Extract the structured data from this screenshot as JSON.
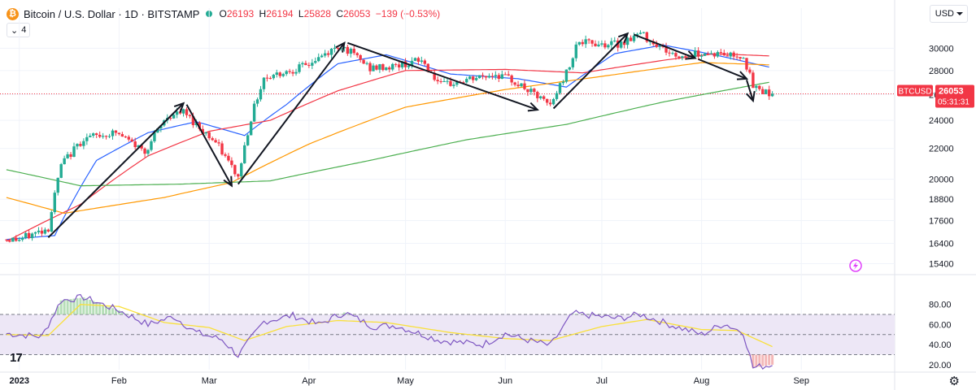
{
  "header": {
    "symbol_title": "Bitcoin / U.S. Dollar · 1D · BITSTAMP",
    "ohlc": [
      {
        "k": "O",
        "v": "26193"
      },
      {
        "k": "H",
        "v": "26194"
      },
      {
        "k": "L",
        "v": "25828"
      },
      {
        "k": "C",
        "v": "26053"
      },
      {
        "k": "",
        "v": "−139 (−0.53%)"
      }
    ],
    "indicator_count": "4",
    "currency": "USD"
  },
  "price_tag": {
    "symbol": "BTCUSD",
    "price": "26053",
    "countdown": "05:31:31",
    "color": "#f23645"
  },
  "colors": {
    "up": "#22ab94",
    "down": "#f23645",
    "ma_blue": "#2962ff",
    "ma_red": "#f23645",
    "ma_orange": "#ff9800",
    "ma_green": "#4caf50",
    "rsi_line": "#7e57c2",
    "rsi_signal": "#f9e03a",
    "rsi_band": "#ede7f6"
  },
  "chart_data": [
    {
      "type": "candlestick",
      "title": "Bitcoin / U.S. Dollar · 1D · BITSTAMP",
      "ylim": [
        15000,
        31500
      ],
      "y_ticks": [
        "30000",
        "28000",
        "26000",
        "24000",
        "22000",
        "20000",
        "18800",
        "17600",
        "16400",
        "15400"
      ],
      "y_scale": "log",
      "x_ticks": [
        "2023",
        "Feb",
        "Mar",
        "Apr",
        "May",
        "Jun",
        "Jul",
        "Aug",
        "Sep"
      ],
      "grid": true,
      "series": [
        {
          "type": "candlestick",
          "x_range": [
            "2022-12-28",
            "2023-08-23"
          ],
          "close_path": [
            [
              "2023-01-01",
              16600
            ],
            [
              "2023-01-10",
              17200
            ],
            [
              "2023-01-14",
              20900
            ],
            [
              "2023-01-21",
              22700
            ],
            [
              "2023-01-31",
              23100
            ],
            [
              "2023-02-09",
              21800
            ],
            [
              "2023-02-16",
              24300
            ],
            [
              "2023-02-21",
              24600
            ],
            [
              "2023-03-03",
              22400
            ],
            [
              "2023-03-10",
              20100
            ],
            [
              "2023-03-14",
              24200
            ],
            [
              "2023-03-18",
              27400
            ],
            [
              "2023-03-31",
              28400
            ],
            [
              "2023-04-11",
              30300
            ],
            [
              "2023-04-20",
              28200
            ],
            [
              "2023-04-26",
              28300
            ],
            [
              "2023-05-06",
              28900
            ],
            [
              "2023-05-12",
              26700
            ],
            [
              "2023-05-29",
              27700
            ],
            [
              "2023-06-03",
              27200
            ],
            [
              "2023-06-15",
              25100
            ],
            [
              "2023-06-21",
              28400
            ],
            [
              "2023-06-23",
              30500
            ],
            [
              "2023-07-06",
              30400
            ],
            [
              "2023-07-13",
              31400
            ],
            [
              "2023-07-24",
              29200
            ],
            [
              "2023-08-01",
              29600
            ],
            [
              "2023-08-14",
              29300
            ],
            [
              "2023-08-17",
              26600
            ],
            [
              "2023-08-23",
              26053
            ]
          ]
        },
        {
          "name": "",
          "type": "line",
          "color": "#2962ff",
          "points": [
            [
              "2022-12-28",
              16600
            ],
            [
              "2023-01-12",
              16800
            ],
            [
              "2023-01-25",
              21200
            ],
            [
              "2023-02-10",
              23100
            ],
            [
              "2023-02-25",
              23900
            ],
            [
              "2023-03-12",
              22900
            ],
            [
              "2023-03-25",
              25200
            ],
            [
              "2023-04-10",
              28600
            ],
            [
              "2023-04-25",
              29400
            ],
            [
              "2023-05-15",
              27700
            ],
            [
              "2023-06-05",
              27300
            ],
            [
              "2023-06-20",
              26600
            ],
            [
              "2023-07-05",
              29500
            ],
            [
              "2023-07-20",
              30300
            ],
            [
              "2023-08-05",
              29400
            ],
            [
              "2023-08-22",
              28300
            ]
          ]
        },
        {
          "name": "",
          "type": "line",
          "color": "#f23645",
          "points": [
            [
              "2022-12-28",
              16500
            ],
            [
              "2023-01-20",
              18500
            ],
            [
              "2023-02-10",
              21500
            ],
            [
              "2023-03-01",
              23200
            ],
            [
              "2023-03-20",
              24000
            ],
            [
              "2023-04-10",
              26300
            ],
            [
              "2023-05-01",
              28000
            ],
            [
              "2023-06-01",
              28100
            ],
            [
              "2023-06-25",
              27800
            ],
            [
              "2023-07-20",
              28900
            ],
            [
              "2023-08-05",
              29500
            ],
            [
              "2023-08-22",
              29300
            ]
          ]
        },
        {
          "name": "",
          "type": "line",
          "color": "#ff9800",
          "points": [
            [
              "2022-12-28",
              18900
            ],
            [
              "2023-01-15",
              18000
            ],
            [
              "2023-02-15",
              18900
            ],
            [
              "2023-03-08",
              19800
            ],
            [
              "2023-04-01",
              22300
            ],
            [
              "2023-05-01",
              25000
            ],
            [
              "2023-06-01",
              26400
            ],
            [
              "2023-07-01",
              27500
            ],
            [
              "2023-08-01",
              28700
            ],
            [
              "2023-08-22",
              28500
            ]
          ]
        },
        {
          "name": "",
          "type": "line",
          "color": "#4caf50",
          "points": [
            [
              "2022-12-28",
              20600
            ],
            [
              "2023-01-20",
              19600
            ],
            [
              "2023-02-20",
              19700
            ],
            [
              "2023-03-20",
              19900
            ],
            [
              "2023-04-20",
              21200
            ],
            [
              "2023-05-20",
              22600
            ],
            [
              "2023-06-20",
              23700
            ],
            [
              "2023-07-20",
              25400
            ],
            [
              "2023-08-22",
              27000
            ]
          ]
        }
      ],
      "annotations": {
        "trend_arrows": [
          [
            [
              "2023-01-10",
              16700
            ],
            [
              "2023-02-21",
              25300
            ]
          ],
          [
            [
              "2023-02-22",
              25200
            ],
            [
              "2023-03-08",
              19600
            ]
          ],
          [
            [
              "2023-03-10",
              19700
            ],
            [
              "2023-04-12",
              30500
            ]
          ],
          [
            [
              "2023-04-13",
              30500
            ],
            [
              "2023-06-11",
              24800
            ]
          ],
          [
            [
              "2023-06-16",
              24900
            ],
            [
              "2023-07-09",
              31400
            ]
          ],
          [
            [
              "2023-07-11",
              31300
            ],
            [
              "2023-07-30",
              29100
            ]
          ],
          [
            [
              "2023-07-31",
              29000
            ],
            [
              "2023-08-15",
              27300
            ]
          ],
          [
            [
              "2023-08-15",
              27200
            ],
            [
              "2023-08-17",
              25500
            ]
          ]
        ],
        "last_price_line": 26053
      }
    },
    {
      "type": "line",
      "title": "",
      "ylim": [
        15,
        100
      ],
      "y_ticks": [
        "80.00",
        "60.00",
        "40.00",
        "20.00"
      ],
      "band": [
        30,
        70
      ],
      "series": [
        {
          "name": "",
          "color": "#7e57c2",
          "points": [
            [
              "2022-12-28",
              51
            ],
            [
              "2023-01-08",
              48
            ],
            [
              "2023-01-14",
              84
            ],
            [
              "2023-01-21",
              87
            ],
            [
              "2023-02-01",
              74
            ],
            [
              "2023-02-10",
              60
            ],
            [
              "2023-02-18",
              68
            ],
            [
              "2023-02-25",
              52
            ],
            [
              "2023-03-05",
              45
            ],
            [
              "2023-03-10",
              29
            ],
            [
              "2023-03-18",
              63
            ],
            [
              "2023-03-27",
              69
            ],
            [
              "2023-04-04",
              60
            ],
            [
              "2023-04-12",
              72
            ],
            [
              "2023-04-21",
              58
            ],
            [
              "2023-04-28",
              59
            ],
            [
              "2023-05-12",
              44
            ],
            [
              "2023-05-25",
              40
            ],
            [
              "2023-06-01",
              51
            ],
            [
              "2023-06-06",
              46
            ],
            [
              "2023-06-15",
              39
            ],
            [
              "2023-06-22",
              71
            ],
            [
              "2023-07-06",
              66
            ],
            [
              "2023-07-13",
              70
            ],
            [
              "2023-07-24",
              58
            ],
            [
              "2023-08-01",
              50
            ],
            [
              "2023-08-08",
              61
            ],
            [
              "2023-08-14",
              52
            ],
            [
              "2023-08-17",
              17
            ],
            [
              "2023-08-23",
              20
            ]
          ]
        },
        {
          "name": "",
          "color": "#f9e03a",
          "points": [
            [
              "2022-12-28",
              50
            ],
            [
              "2023-01-10",
              49
            ],
            [
              "2023-01-20",
              80
            ],
            [
              "2023-02-01",
              78
            ],
            [
              "2023-02-15",
              62
            ],
            [
              "2023-03-01",
              57
            ],
            [
              "2023-03-12",
              44
            ],
            [
              "2023-03-25",
              58
            ],
            [
              "2023-04-10",
              64
            ],
            [
              "2023-04-25",
              62
            ],
            [
              "2023-05-15",
              52
            ],
            [
              "2023-06-01",
              46
            ],
            [
              "2023-06-15",
              44
            ],
            [
              "2023-07-01",
              58
            ],
            [
              "2023-07-15",
              65
            ],
            [
              "2023-08-01",
              55
            ],
            [
              "2023-08-12",
              54
            ],
            [
              "2023-08-23",
              38
            ]
          ]
        }
      ]
    }
  ]
}
